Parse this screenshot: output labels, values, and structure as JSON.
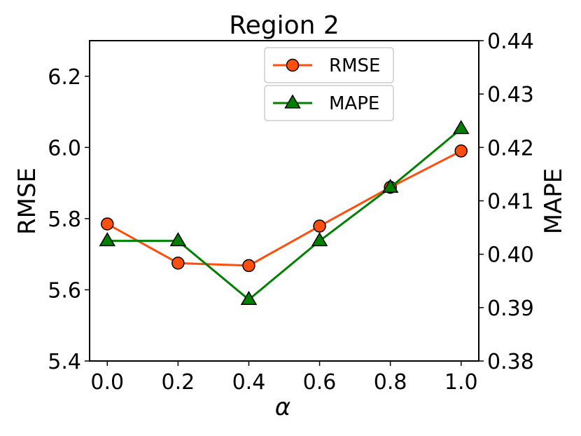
{
  "chart_data": {
    "type": "line",
    "title": "Region 2",
    "xlabel": "α",
    "ylabel_left": "RMSE",
    "ylabel_right": "MAPE",
    "x": [
      0.0,
      0.2,
      0.4,
      0.6,
      0.8,
      1.0
    ],
    "x_tick_labels": [
      "0.0",
      "0.2",
      "0.4",
      "0.6",
      "0.8",
      "1.0"
    ],
    "xlim": [
      -0.05,
      1.05
    ],
    "ylim_left": [
      5.4,
      6.3
    ],
    "left_tick_labels": [
      "5.4",
      "5.6",
      "5.8",
      "6.0",
      "6.2"
    ],
    "left_ticks": [
      5.4,
      5.6,
      5.8,
      6.0,
      6.2
    ],
    "ylim_right": [
      0.38,
      0.44
    ],
    "right_tick_labels": [
      "0.38",
      "0.39",
      "0.40",
      "0.41",
      "0.42",
      "0.43",
      "0.44"
    ],
    "right_ticks": [
      0.38,
      0.39,
      0.4,
      0.41,
      0.42,
      0.43,
      0.44
    ],
    "grid": false,
    "legend_placement": "top-center",
    "series": [
      {
        "name": "RMSE",
        "axis": "left",
        "marker": "circle",
        "color": "#ff4f0f",
        "values": [
          5.785,
          5.675,
          5.668,
          5.779,
          5.888,
          5.99
        ]
      },
      {
        "name": "MAPE",
        "axis": "right",
        "marker": "triangle",
        "color": "#007f00",
        "values": [
          0.4025,
          0.4025,
          0.3915,
          0.4025,
          0.4125,
          0.4235
        ]
      }
    ]
  }
}
